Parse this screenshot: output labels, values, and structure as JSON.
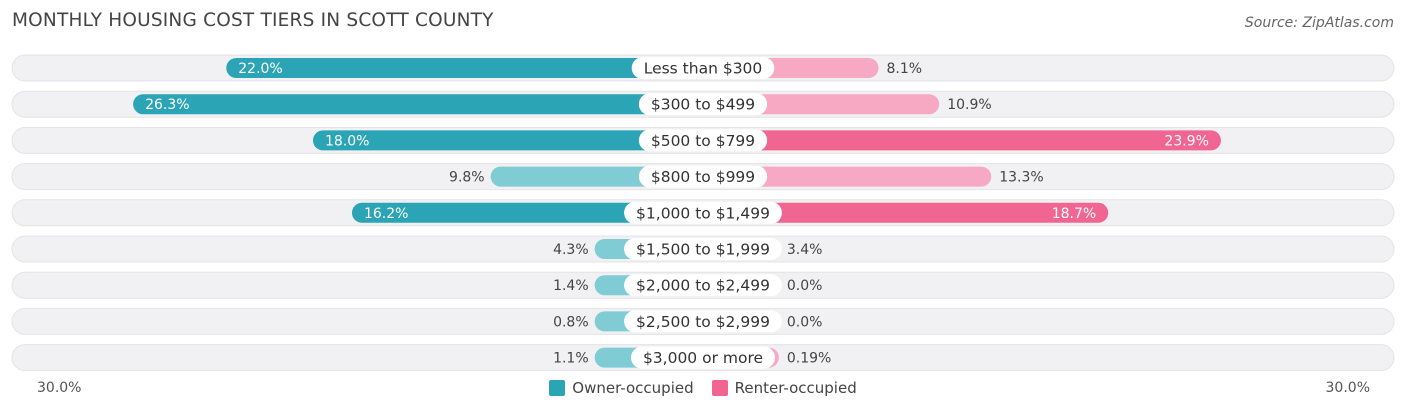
{
  "title": "MONTHLY HOUSING COST TIERS IN SCOTT COUNTY",
  "source": "Source: ZipAtlas.com",
  "colors": {
    "owner": "#2ba4b6",
    "owner_light": "#7fccd4",
    "renter": "#f06592",
    "renter_light": "#f7a8c2",
    "track": "#f1f1f3"
  },
  "chart_data": {
    "type": "bar",
    "orientation": "diverging-horizontal",
    "categories": [
      "Less than $300",
      "$300 to $499",
      "$500 to $799",
      "$800 to $999",
      "$1,000 to $1,499",
      "$1,500 to $1,999",
      "$2,000 to $2,499",
      "$2,500 to $2,999",
      "$3,000 or more"
    ],
    "series": [
      {
        "name": "Owner-occupied",
        "values": [
          22.0,
          26.3,
          18.0,
          9.8,
          16.2,
          4.3,
          1.4,
          0.8,
          1.1
        ],
        "labels": [
          "22.0%",
          "26.3%",
          "18.0%",
          "9.8%",
          "16.2%",
          "4.3%",
          "1.4%",
          "0.8%",
          "1.1%"
        ]
      },
      {
        "name": "Renter-occupied",
        "values": [
          8.1,
          10.9,
          23.9,
          13.3,
          18.7,
          3.4,
          0.0,
          0.0,
          0.19
        ],
        "labels": [
          "8.1%",
          "10.9%",
          "23.9%",
          "13.3%",
          "18.7%",
          "3.4%",
          "0.0%",
          "0.0%",
          "0.19%"
        ]
      }
    ],
    "xlim": [
      0,
      30
    ],
    "axis_left_label": "30.0%",
    "axis_right_label": "30.0%",
    "legend_position": "bottom-center"
  }
}
